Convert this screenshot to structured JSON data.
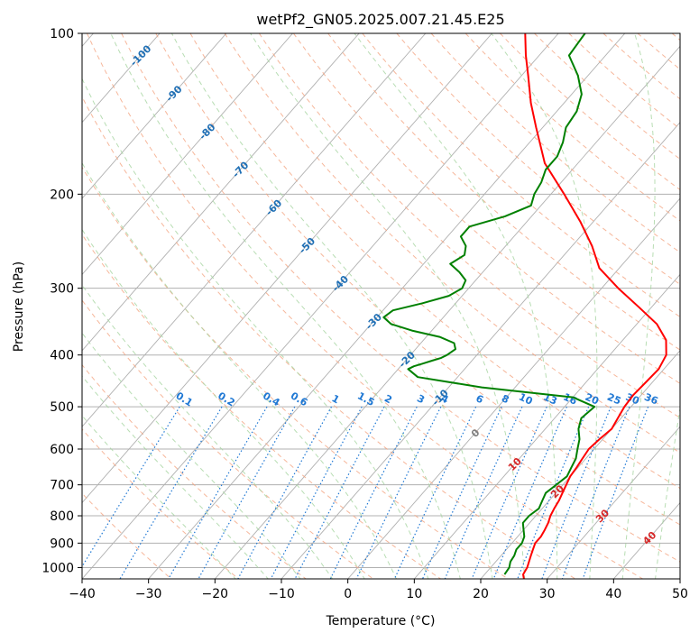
{
  "chart_data": {
    "type": "line",
    "title": "wetPf2_GN05.2025.007.21.45.E25",
    "xlabel": "Temperature (°C)",
    "ylabel": "Pressure (hPa)",
    "xlim": [
      -40,
      50
    ],
    "ylim": [
      1050,
      100
    ],
    "y_scale": "log",
    "grid": true,
    "x_ticks": [
      -40,
      -30,
      -20,
      -10,
      0,
      10,
      20,
      30,
      40,
      50
    ],
    "y_ticks": [
      100,
      200,
      300,
      400,
      500,
      600,
      700,
      800,
      900,
      1000
    ],
    "series": [
      {
        "color": "#ff0000",
        "pressure": [
          1050,
          1030,
          1000,
          975,
          950,
          925,
          900,
          875,
          850,
          825,
          800,
          775,
          750,
          725,
          700,
          675,
          650,
          625,
          600,
          575,
          550,
          525,
          500,
          475,
          450,
          425,
          400,
          375,
          350,
          325,
          300,
          275,
          250,
          225,
          200,
          175,
          150,
          135,
          120,
          110,
          100
        ],
        "temperature": [
          26.5,
          25.8,
          25.5,
          25.0,
          24.5,
          24.0,
          23.5,
          23.5,
          23.2,
          22.8,
          22.2,
          21.8,
          21.5,
          21.0,
          20.5,
          20.0,
          19.8,
          19.5,
          19.2,
          19.5,
          20.0,
          19.5,
          19.0,
          18.8,
          19.0,
          19.2,
          18.5,
          16.5,
          13.0,
          8.0,
          2.5,
          -3.0,
          -7.0,
          -12.0,
          -18.0,
          -25.0,
          -31.0,
          -35.0,
          -39.0,
          -42.0,
          -45.0
        ]
      },
      {
        "color": "#008000",
        "pressure": [
          1030,
          1000,
          975,
          950,
          925,
          900,
          875,
          850,
          825,
          800,
          775,
          750,
          725,
          700,
          675,
          650,
          625,
          600,
          575,
          550,
          525,
          500,
          480,
          460,
          440,
          425,
          420,
          415,
          410,
          405,
          400,
          390,
          380,
          370,
          360,
          350,
          340,
          330,
          320,
          310,
          300,
          290,
          280,
          270,
          260,
          250,
          240,
          230,
          220,
          210,
          200,
          190,
          180,
          170,
          160,
          150,
          140,
          130,
          120,
          110,
          100
        ],
        "temperature": [
          23.0,
          22.8,
          22.2,
          22.0,
          21.5,
          21.5,
          21.0,
          20.0,
          19.0,
          19.0,
          19.5,
          19.0,
          18.5,
          19.0,
          19.5,
          19.0,
          18.5,
          17.5,
          16.5,
          15.0,
          14.0,
          14.5,
          10.0,
          -5.0,
          -16.0,
          -18.5,
          -18.0,
          -17.0,
          -16.0,
          -15.0,
          -14.5,
          -14.0,
          -15.0,
          -18.0,
          -23.0,
          -27.0,
          -29.0,
          -28.5,
          -25.0,
          -22.0,
          -21.0,
          -21.5,
          -23.5,
          -26.0,
          -25.0,
          -26.0,
          -28.0,
          -28.0,
          -24.0,
          -21.5,
          -22.5,
          -23.0,
          -24.0,
          -24.0,
          -25.0,
          -26.5,
          -27.0,
          -28.5,
          -31.5,
          -35.5,
          -36.0
        ]
      }
    ],
    "dry_adiabat_labels": [
      "-100",
      "-90",
      "-80",
      "-70",
      "-60",
      "-50",
      "-40",
      "-30",
      "-20",
      "-10",
      "0",
      "10",
      "20",
      "30",
      "40"
    ],
    "mixing_ratio_labels": [
      "0.1",
      "0.2",
      "0.4",
      "0.6",
      "1",
      "1.5",
      "2",
      "3",
      "4",
      "6",
      "8",
      "10",
      "13",
      "16",
      "20",
      "25",
      "30",
      "36"
    ]
  },
  "colors": {
    "isotherm": "#b0b0b0",
    "isobar": "#b0b0b0",
    "dry_adiabat": "#f4a582",
    "moist_adiabat": "#a6d4a0",
    "mixing_ratio": "#1f78d4",
    "label_blue": "#1f6fb5",
    "label_red": "#d62728",
    "label_gray": "#808080"
  }
}
